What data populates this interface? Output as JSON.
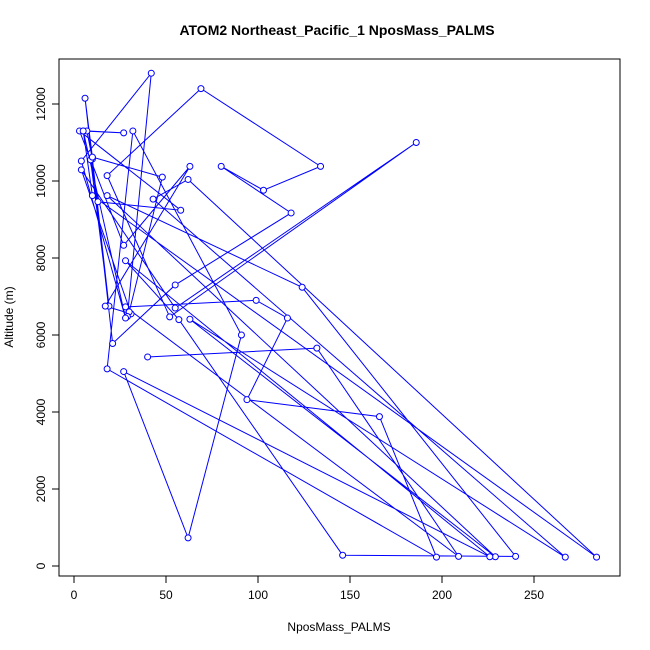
{
  "chart_data": {
    "type": "line",
    "title": "ATOM2 Northeast_Pacific_1 NposMass_PALMS",
    "xlabel": "NposMass_PALMS",
    "ylabel": "Altitude (m)",
    "xlim": [
      0,
      290
    ],
    "ylim": [
      0,
      13000
    ],
    "x_ticks": [
      0,
      50,
      100,
      150,
      200,
      250
    ],
    "y_ticks": [
      0,
      2000,
      4000,
      6000,
      8000,
      10000,
      12000
    ],
    "grid": false,
    "color": "#0000ff",
    "series": [
      {
        "x": [
          5,
          27,
          7,
          10,
          19,
          9,
          13,
          58,
          3,
          27,
          63,
          17,
          31,
          4,
          55,
          186,
          52,
          18,
          69,
          134,
          103,
          80,
          118,
          55,
          21,
          6,
          10,
          48,
          30,
          29,
          42,
          4,
          28,
          5,
          10,
          284,
          62,
          43,
          267,
          63,
          229,
          18,
          124,
          240,
          146,
          57,
          28,
          226,
          27,
          62,
          91,
          32,
          18,
          197,
          166,
          94,
          116,
          99,
          28,
          209,
          132,
          40
        ],
        "y": [
          11300,
          11250,
          11300,
          10570,
          6750,
          10550,
          9460,
          9240,
          11300,
          8330,
          10380,
          6750,
          6550,
          10290,
          6700,
          11000,
          6470,
          10140,
          12400,
          10380,
          9760,
          10380,
          9170,
          7300,
          5780,
          12150,
          10620,
          10100,
          6600,
          6480,
          12800,
          10520,
          6440,
          11300,
          9620,
          230,
          10040,
          9530,
          230,
          6410,
          240,
          9620,
          7240,
          250,
          280,
          6400,
          7930,
          240,
          5050,
          730,
          6000,
          11300,
          5120,
          230,
          3880,
          4320,
          6440,
          6900,
          6730,
          250,
          5660,
          5430
        ]
      }
    ]
  }
}
